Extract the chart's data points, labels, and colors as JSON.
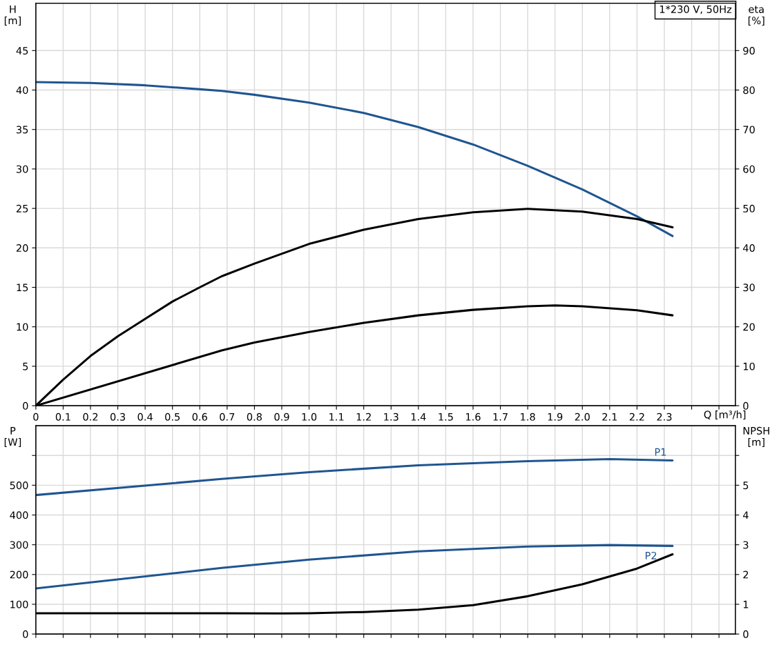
{
  "chart_data": [
    {
      "type": "line",
      "annotations": [
        "1*230 V, 50Hz"
      ],
      "xlabel": "Q [m³/h]",
      "ylabel": "H\n[m]",
      "y2label": "eta\n[%]",
      "xlim": [
        0,
        2.56
      ],
      "xticks": [
        0,
        0.1,
        0.2,
        0.3,
        0.4,
        0.5,
        0.6,
        0.7,
        0.8,
        0.9,
        {
          "value": 1.0,
          "label": "1.0"
        },
        1.1,
        1.2,
        1.3,
        1.4,
        1.5,
        1.6,
        1.7,
        1.8,
        1.9,
        {
          "value": 2.0,
          "label": "2.0"
        },
        2.1,
        2.2,
        2.3,
        {
          "value": 2.4,
          "label": null
        },
        {
          "value": 2.5,
          "label": null
        }
      ],
      "ylim": [
        0,
        51
      ],
      "yticks": [
        0,
        5,
        10,
        15,
        20,
        25,
        30,
        35,
        40,
        45
      ],
      "y2lim": [
        0,
        102
      ],
      "y2ticks": [
        0,
        10,
        20,
        30,
        40,
        50,
        60,
        70,
        80,
        90
      ],
      "grid": true,
      "legend": false,
      "series": [
        {
          "color": "#1f5591",
          "x": [
            0,
            0.2,
            0.4,
            0.6,
            0.68,
            0.8,
            1.0,
            1.2,
            1.4,
            1.6,
            1.8,
            2.0,
            2.2,
            2.33
          ],
          "values": [
            41.0,
            40.9,
            40.6,
            40.1,
            39.9,
            39.4,
            38.4,
            37.1,
            35.3,
            33.1,
            30.4,
            27.4,
            24.0,
            21.5
          ]
        },
        {
          "color": "#000000",
          "axis": "y2",
          "x": [
            0,
            0.1,
            0.2,
            0.3,
            0.4,
            0.5,
            0.6,
            0.68,
            0.8,
            1.0,
            1.2,
            1.4,
            1.6,
            1.8,
            2.0,
            2.2,
            2.33
          ],
          "values": [
            0,
            6.6,
            12.6,
            17.6,
            22.0,
            26.4,
            30.0,
            32.8,
            36.0,
            41.0,
            44.6,
            47.3,
            49.0,
            49.9,
            49.2,
            47.3,
            45.2
          ]
        },
        {
          "color": "#000000",
          "axis": "y2",
          "x": [
            0,
            0.68,
            0.8,
            1.0,
            1.2,
            1.4,
            1.6,
            1.8,
            1.9,
            2.0,
            2.2,
            2.33
          ],
          "values": [
            0,
            14.0,
            16.0,
            18.7,
            21.0,
            22.9,
            24.3,
            25.2,
            25.4,
            25.2,
            24.2,
            22.9
          ]
        }
      ]
    },
    {
      "type": "line",
      "ylabel": "P\n[W]",
      "y2label": "NPSH\n[m]",
      "tick_labels": "y",
      "xlim": [
        0,
        2.56
      ],
      "xticks": [
        0,
        0.1,
        0.2,
        0.3,
        0.4,
        0.5,
        0.6,
        0.7,
        0.8,
        0.9,
        1.0,
        1.1,
        1.2,
        1.3,
        1.4,
        1.5,
        1.6,
        1.7,
        1.8,
        1.9,
        2.0,
        2.1,
        2.2,
        2.3,
        2.4,
        2.5
      ],
      "ylim": [
        0,
        700
      ],
      "yticks": [
        0,
        100,
        200,
        300,
        400,
        500,
        {
          "value": 600,
          "label": null
        }
      ],
      "y2lim": [
        0,
        7
      ],
      "y2ticks": [
        0,
        1,
        2,
        3,
        4,
        5,
        {
          "value": 6,
          "label": null
        }
      ],
      "grid": true,
      "legend": false,
      "series": [
        {
          "name": "P1",
          "color": "#1f5591",
          "x": [
            0,
            0.68,
            1.0,
            1.4,
            1.8,
            2.1,
            2.33
          ],
          "values": [
            467,
            521,
            544,
            567,
            581,
            588,
            583
          ]
        },
        {
          "name": "P2",
          "color": "#1f5591",
          "x": [
            0,
            0.68,
            1.0,
            1.4,
            1.8,
            2.1,
            2.33
          ],
          "values": [
            153,
            222,
            250,
            278,
            294,
            299,
            296
          ]
        },
        {
          "color": "#000000",
          "axis": "y2",
          "x": [
            0,
            0.68,
            0.9,
            1.0,
            1.2,
            1.4,
            1.6,
            1.8,
            2.0,
            2.2,
            2.33
          ],
          "values": [
            0.7,
            0.7,
            0.69,
            0.7,
            0.74,
            0.82,
            0.97,
            1.27,
            1.67,
            2.2,
            2.68
          ]
        }
      ]
    }
  ]
}
